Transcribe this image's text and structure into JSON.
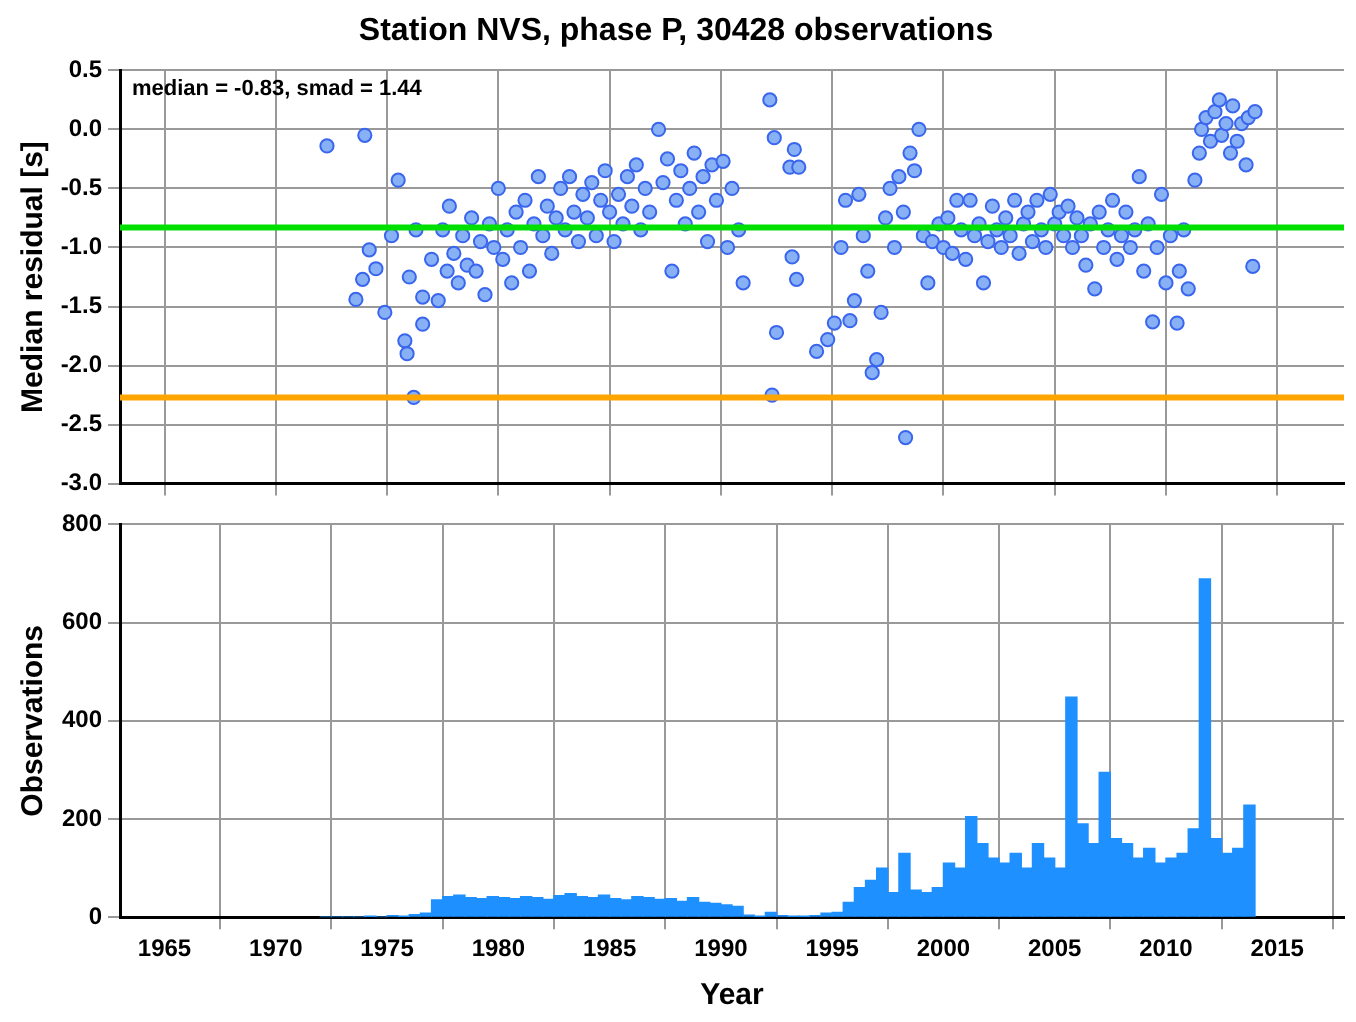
{
  "chart_data": [
    {
      "type": "scatter",
      "title": "Station NVS, phase P, 30428 observations",
      "ylabel": "Median residual [s]",
      "annotations": [
        "median = -0.83, smad = 1.44"
      ],
      "x": [
        1972.3,
        1974.0,
        1973.6,
        1973.9,
        1974.2,
        1974.5,
        1974.9,
        1975.2,
        1975.5,
        1975.8,
        1975.9,
        1976.2,
        1976.0,
        1976.3,
        1976.6,
        1976.6,
        1977.0,
        1977.3,
        1977.5,
        1977.7,
        1977.8,
        1978.0,
        1978.2,
        1978.4,
        1978.6,
        1978.8,
        1979.0,
        1979.2,
        1979.4,
        1979.6,
        1979.8,
        1980.0,
        1980.2,
        1980.4,
        1980.6,
        1980.8,
        1981.0,
        1981.2,
        1981.4,
        1981.6,
        1981.8,
        1982.0,
        1982.2,
        1982.4,
        1982.6,
        1982.8,
        1983.0,
        1983.2,
        1983.4,
        1983.6,
        1983.8,
        1984.0,
        1984.2,
        1984.4,
        1984.6,
        1984.8,
        1985.0,
        1985.2,
        1985.4,
        1985.6,
        1985.8,
        1986.0,
        1986.2,
        1986.4,
        1986.6,
        1986.8,
        1987.2,
        1987.4,
        1987.6,
        1987.8,
        1988.0,
        1988.2,
        1988.4,
        1988.6,
        1988.8,
        1989.0,
        1989.2,
        1989.4,
        1989.6,
        1989.8,
        1990.1,
        1990.3,
        1990.5,
        1990.8,
        1991.0,
        1992.2,
        1992.4,
        1992.3,
        1992.5,
        1993.1,
        1993.2,
        1993.3,
        1993.4,
        1993.5,
        1994.3,
        1994.8,
        1995.1,
        1995.4,
        1995.6,
        1995.8,
        1996.0,
        1996.2,
        1996.4,
        1996.6,
        1996.8,
        1997.0,
        1997.2,
        1997.4,
        1997.6,
        1997.8,
        1998.0,
        1998.2,
        1998.3,
        1998.5,
        1998.7,
        1998.9,
        1999.1,
        1999.3,
        1999.5,
        1999.8,
        2000.0,
        2000.2,
        2000.4,
        2000.6,
        2000.8,
        2001.0,
        2001.2,
        2001.4,
        2001.6,
        2001.8,
        2002.0,
        2002.2,
        2002.4,
        2002.6,
        2002.8,
        2003.0,
        2003.2,
        2003.4,
        2003.6,
        2003.8,
        2004.0,
        2004.2,
        2004.4,
        2004.6,
        2004.8,
        2005.0,
        2005.2,
        2005.4,
        2005.6,
        2005.8,
        2006.0,
        2006.2,
        2006.4,
        2006.6,
        2006.8,
        2007.0,
        2007.2,
        2007.4,
        2007.6,
        2007.8,
        2008.0,
        2008.2,
        2008.4,
        2008.6,
        2008.8,
        2009.0,
        2009.2,
        2009.4,
        2009.6,
        2009.8,
        2010.0,
        2010.2,
        2010.5,
        2010.6,
        2010.8,
        2011.0,
        2011.3,
        2011.5,
        2011.6,
        2011.8,
        2012.0,
        2012.2,
        2012.4,
        2012.5,
        2012.7,
        2012.9,
        2013.0,
        2013.2,
        2013.4,
        2013.6,
        2013.7,
        2013.9,
        2014.0
      ],
      "values": [
        -0.14,
        -0.05,
        -1.44,
        -1.27,
        -1.02,
        -1.18,
        -1.55,
        -0.9,
        -0.43,
        -1.79,
        -1.9,
        -2.27,
        -1.25,
        -0.85,
        -1.42,
        -1.65,
        -1.1,
        -1.45,
        -0.85,
        -1.2,
        -0.65,
        -1.05,
        -1.3,
        -0.9,
        -1.15,
        -0.75,
        -1.2,
        -0.95,
        -1.4,
        -0.8,
        -1.0,
        -0.5,
        -1.1,
        -0.85,
        -1.3,
        -0.7,
        -1.0,
        -0.6,
        -1.2,
        -0.8,
        -0.4,
        -0.9,
        -0.65,
        -1.05,
        -0.75,
        -0.5,
        -0.85,
        -0.4,
        -0.7,
        -0.95,
        -0.55,
        -0.75,
        -0.45,
        -0.9,
        -0.6,
        -0.35,
        -0.7,
        -0.95,
        -0.55,
        -0.8,
        -0.4,
        -0.65,
        -0.3,
        -0.85,
        -0.5,
        -0.7,
        0.0,
        -0.45,
        -0.25,
        -1.2,
        -0.6,
        -0.35,
        -0.8,
        -0.5,
        -0.2,
        -0.7,
        -0.4,
        -0.95,
        -0.3,
        -0.6,
        -0.27,
        -1.0,
        -0.5,
        -0.85,
        -1.3,
        0.25,
        -0.07,
        -2.25,
        -1.72,
        -0.32,
        -1.08,
        -0.17,
        -1.27,
        -0.32,
        -1.88,
        -1.78,
        -1.64,
        -1.0,
        -0.6,
        -1.62,
        -1.45,
        -0.55,
        -0.9,
        -1.2,
        -2.06,
        -1.95,
        -1.55,
        -0.75,
        -0.5,
        -1.0,
        -0.4,
        -0.7,
        -2.61,
        -0.2,
        -0.35,
        0.0,
        -0.9,
        -1.3,
        -0.95,
        -0.8,
        -1.0,
        -0.75,
        -1.05,
        -0.6,
        -0.85,
        -1.1,
        -0.6,
        -0.9,
        -0.8,
        -1.3,
        -0.95,
        -0.65,
        -0.85,
        -1.0,
        -0.75,
        -0.9,
        -0.6,
        -1.05,
        -0.8,
        -0.7,
        -0.95,
        -0.6,
        -0.85,
        -1.0,
        -0.55,
        -0.8,
        -0.7,
        -0.9,
        -0.65,
        -1.0,
        -0.75,
        -0.9,
        -1.15,
        -0.8,
        -1.35,
        -0.7,
        -1.0,
        -0.85,
        -0.6,
        -1.1,
        -0.9,
        -0.7,
        -1.0,
        -0.85,
        -0.4,
        -1.2,
        -0.8,
        -1.63,
        -1.0,
        -0.55,
        -1.3,
        -0.9,
        -1.64,
        -1.2,
        -0.85,
        -1.35,
        -0.43,
        -0.2,
        0.0,
        0.1,
        -0.1,
        0.15,
        0.25,
        -0.05,
        0.05,
        -0.2,
        0.2,
        -0.1,
        0.05,
        -0.3,
        0.1,
        -1.16,
        0.15
      ],
      "color": "#87b0f5",
      "marker": "circle",
      "ref_lines": [
        {
          "axis": "y",
          "value": -0.83,
          "color": "#00e000"
        },
        {
          "axis": "y",
          "value": -2.27,
          "color": "#ffa500"
        }
      ],
      "xlim": [
        1963,
        2018
      ],
      "xticks": [
        1965,
        1970,
        1975,
        1980,
        1985,
        1990,
        1995,
        2000,
        2005,
        2010,
        2015
      ],
      "ylim": [
        -3.0,
        0.5
      ],
      "yticks": [
        0.5,
        {
          "value": 0,
          "label": "0.0"
        },
        -0.5,
        {
          "value": -1,
          "label": "-1.0"
        },
        -1.5,
        {
          "value": -2,
          "label": "-2.0"
        },
        -2.5,
        {
          "value": -3,
          "label": "-3.0"
        }
      ],
      "grid": true,
      "tick_labels": "y"
    },
    {
      "type": "histogram",
      "xlabel": "Year",
      "ylabel": "Observations",
      "bins": [
        1972,
        1972.5,
        1973,
        1973.5,
        1974,
        1974.5,
        1975,
        1975.5,
        1976,
        1976.5,
        1977,
        1977.5,
        1978,
        1978.5,
        1979,
        1979.5,
        1980,
        1980.5,
        1981,
        1981.5,
        1982,
        1982.5,
        1983,
        1983.5,
        1984,
        1984.5,
        1985,
        1985.5,
        1986,
        1986.5,
        1987,
        1987.5,
        1988,
        1988.5,
        1989,
        1989.5,
        1990,
        1990.5,
        1991,
        1991.5,
        1992,
        1992.5,
        1993,
        1993.5,
        1994,
        1994.5,
        1995,
        1995.5,
        1996,
        1996.5,
        1997,
        1997.5,
        1998,
        1998.5,
        1999,
        1999.5,
        2000,
        2000.5,
        2001,
        2001.5,
        2002,
        2002.5,
        2003,
        2003.5,
        2004,
        2004.5,
        2005,
        2005.5,
        2006,
        2006.5,
        2007,
        2007.5,
        2008,
        2008.5,
        2009,
        2009.5,
        2010,
        2010.5,
        2011,
        2011.5,
        2012,
        2012.5,
        2013,
        2013.5,
        2014
      ],
      "values": [
        0,
        0,
        0,
        0,
        2,
        0,
        3,
        2,
        5,
        8,
        35,
        42,
        45,
        40,
        38,
        42,
        40,
        38,
        42,
        40,
        36,
        44,
        48,
        42,
        40,
        45,
        38,
        35,
        42,
        40,
        36,
        38,
        32,
        40,
        30,
        28,
        25,
        22,
        4,
        2,
        10,
        3,
        2,
        1,
        3,
        8,
        10,
        30,
        60,
        75,
        100,
        50,
        130,
        55,
        50,
        60,
        110,
        100,
        205,
        150,
        120,
        110,
        130,
        100,
        150,
        120,
        100,
        448,
        190,
        150,
        295,
        160,
        150,
        120,
        140,
        110,
        120,
        130,
        180,
        689,
        160,
        130,
        140,
        228
      ],
      "color": "#1e90ff",
      "xlim": [
        1963,
        2018
      ],
      "xticks": [
        1965,
        1970,
        1975,
        1980,
        1985,
        1990,
        1995,
        2000,
        2005,
        2010,
        2015
      ],
      "ylim": [
        0,
        800
      ],
      "yticks": [
        0,
        200,
        400,
        600,
        800
      ],
      "grid": true
    }
  ]
}
